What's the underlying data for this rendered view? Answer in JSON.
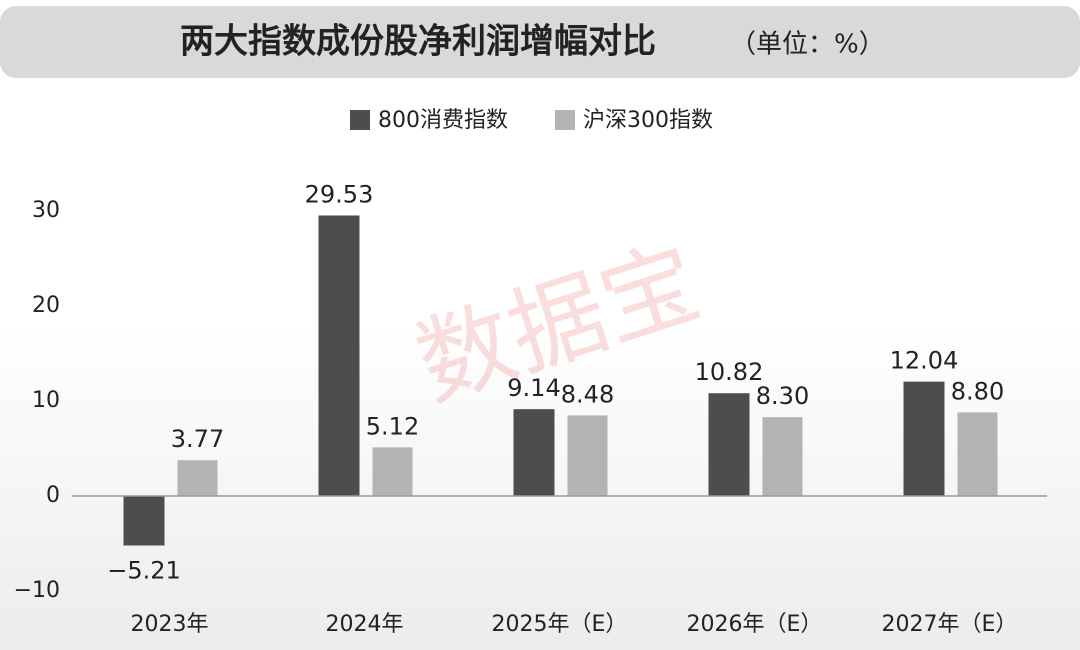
{
  "chart_data": {
    "type": "bar",
    "title": "两大指数成份股净利润增幅对比",
    "unit": "（单位：%）",
    "watermark": "数据宝",
    "categories": [
      "2023年",
      "2024年",
      "2025年（E）",
      "2026年（E）",
      "2027年（E）"
    ],
    "series": [
      {
        "name": "800消费指数",
        "color": "#4d4d4d",
        "values": [
          -5.21,
          29.53,
          9.14,
          10.82,
          12.04
        ],
        "value_labels": [
          "−5.21",
          "29.53",
          "9.14",
          "10.82",
          "12.04"
        ]
      },
      {
        "name": "沪深300指数",
        "color": "#b3b3b3",
        "values": [
          3.77,
          5.12,
          8.48,
          8.3,
          8.8
        ],
        "value_labels": [
          "3.77",
          "5.12",
          "8.48",
          "8.30",
          "8.80"
        ]
      }
    ],
    "ylim": [
      -10,
      30
    ],
    "yticks": [
      {
        "value": -10,
        "label": "−10"
      },
      0,
      10,
      20,
      30
    ],
    "grid": false
  }
}
